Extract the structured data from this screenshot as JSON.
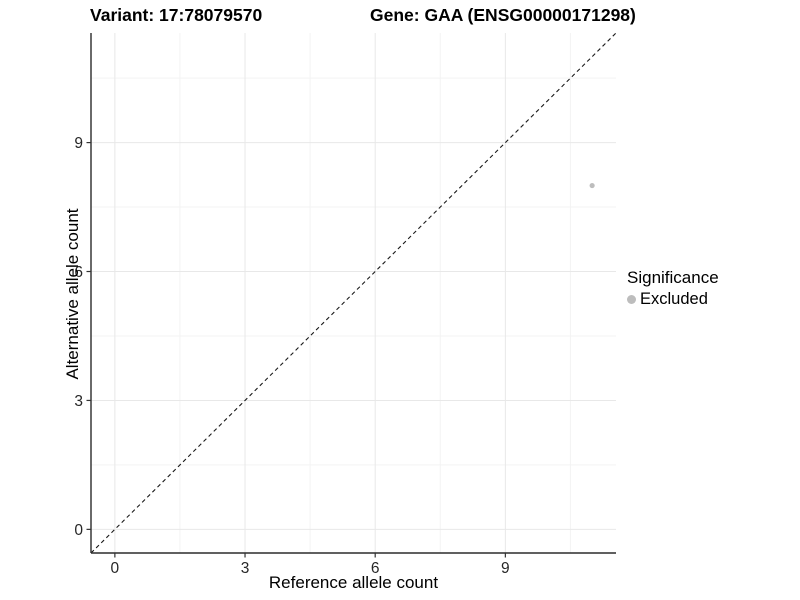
{
  "header": {
    "title_left": "Variant: 17:78079570",
    "title_right": "Gene: GAA (ENSG00000171298)"
  },
  "chart_data": {
    "type": "scatter",
    "title_left": "Variant: 17:78079570",
    "title_right": "Gene: GAA (ENSG00000171298)",
    "xlabel": "Reference allele count",
    "ylabel": "Alternative allele count",
    "xlim": [
      -0.55,
      11.55
    ],
    "ylim": [
      -0.55,
      11.55
    ],
    "x_ticks": [
      0,
      3,
      6,
      9
    ],
    "y_ticks": [
      0,
      3,
      6,
      9
    ],
    "x_minor_ticks": [
      1.5,
      4.5,
      7.5,
      10.5
    ],
    "y_minor_ticks": [
      1.5,
      4.5,
      7.5,
      10.5
    ],
    "grid": "major+minor",
    "identity_line": {
      "style": "dashed",
      "from_xy": [
        -0.55,
        -0.55
      ],
      "to_xy": [
        11.55,
        11.55
      ],
      "color": "#1a1a1a"
    },
    "series": [
      {
        "name": "Excluded",
        "color": "#bdbdbd",
        "points": [
          {
            "x": 11,
            "y": 8
          }
        ]
      }
    ],
    "legend": {
      "position": "right",
      "title": "Significance",
      "items": [
        {
          "label": "Excluded",
          "color": "#bdbdbd"
        }
      ]
    },
    "colors": {
      "background": "#ffffff",
      "grid_major": "#e8e8e8",
      "grid_minor": "#f3f3f3",
      "axis_line": "#2b2b2b",
      "tick_mark": "#333333",
      "tick_label": "#262626"
    }
  }
}
